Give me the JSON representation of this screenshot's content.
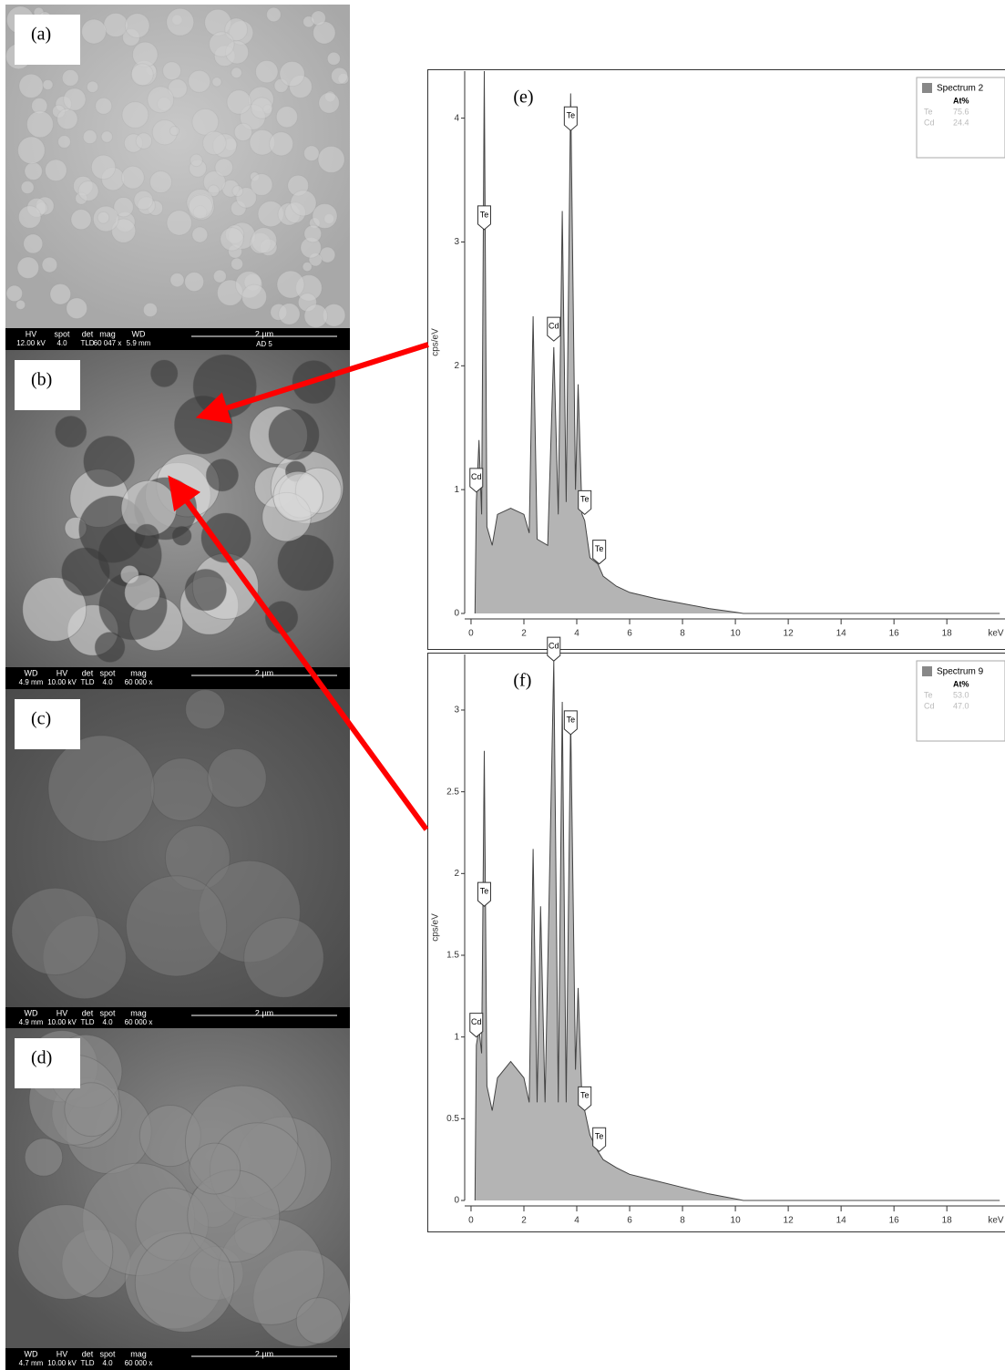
{
  "panels": [
    {
      "label": "(a)",
      "info_headers": [
        "HV",
        "spot",
        "det",
        "mag",
        "WD"
      ],
      "info_values": [
        "12.00 kV",
        "4.0",
        "TLD",
        "60 047 x",
        "5.9 mm"
      ],
      "scale": "2 µm",
      "note": "AD 5"
    },
    {
      "label": "(b)",
      "info_headers": [
        "WD",
        "HV",
        "det",
        "spot",
        "mag"
      ],
      "info_values": [
        "4.9 mm",
        "10.00 kV",
        "TLD",
        "4.0",
        "60 000 x"
      ],
      "scale": "2 µm"
    },
    {
      "label": "(c)",
      "info_headers": [
        "WD",
        "HV",
        "det",
        "spot",
        "mag"
      ],
      "info_values": [
        "4.9 mm",
        "10.00 kV",
        "TLD",
        "4.0",
        "60 000 x"
      ],
      "scale": "2 µm"
    },
    {
      "label": "(d)",
      "info_headers": [
        "WD",
        "HV",
        "det",
        "spot",
        "mag"
      ],
      "info_values": [
        "4.7 mm",
        "10.00 kV",
        "TLD",
        "4.0",
        "60 000 x"
      ],
      "scale": "2 µm"
    }
  ],
  "chart_data": [
    {
      "type": "area",
      "title": "(e)",
      "y_label": "cps/eV",
      "x_label": "keV",
      "color": "#b4b4b4",
      "x": [
        0.15,
        0.2,
        0.3,
        0.4,
        0.5,
        0.6,
        0.8,
        1.0,
        1.5,
        2.0,
        2.2,
        2.35,
        2.5,
        2.9,
        3.13,
        3.3,
        3.45,
        3.6,
        3.77,
        3.95,
        4.05,
        4.2,
        4.3,
        4.5,
        4.8,
        5.0,
        5.5,
        6,
        7,
        8,
        9,
        10,
        10.3,
        20
      ],
      "values": [
        0,
        0.9,
        1.4,
        0.8,
        4.38,
        0.7,
        0.55,
        0.8,
        0.85,
        0.8,
        0.65,
        2.4,
        0.6,
        0.55,
        2.15,
        0.8,
        3.25,
        0.9,
        4.2,
        1.0,
        1.85,
        0.8,
        0.75,
        0.45,
        0.4,
        0.3,
        0.22,
        0.17,
        0.12,
        0.08,
        0.04,
        0.01,
        0,
        0
      ],
      "xlim": [
        -0.24,
        20.2
      ],
      "xticks": [
        0,
        2,
        4,
        6,
        8,
        10,
        12,
        14,
        16,
        18
      ],
      "ylim": [
        0,
        4.38
      ],
      "yticks": [
        0,
        1,
        2,
        3,
        4
      ],
      "annotations": [
        {
          "text": "Cd",
          "x": 0.2,
          "y": 0.98
        },
        {
          "text": "Te",
          "x": 0.5,
          "y": 3.1
        },
        {
          "text": "Cd",
          "x": 3.13,
          "y": 2.2
        },
        {
          "text": "Te",
          "x": 3.77,
          "y": 3.9
        },
        {
          "text": "Te",
          "x": 4.3,
          "y": 0.8
        },
        {
          "text": "Te",
          "x": 4.85,
          "y": 0.4
        }
      ],
      "legend": {
        "title": "Spectrum 2",
        "header": "At%",
        "rows": [
          [
            "Te",
            "75.6"
          ],
          [
            "Cd",
            "24.4"
          ]
        ]
      }
    },
    {
      "type": "area",
      "title": "(f)",
      "y_label": "cps/eV",
      "x_label": "keV",
      "color": "#b4b4b4",
      "x": [
        0.15,
        0.2,
        0.3,
        0.4,
        0.5,
        0.6,
        0.8,
        1.0,
        1.5,
        2.0,
        2.2,
        2.35,
        2.5,
        2.63,
        2.8,
        3.13,
        3.3,
        3.45,
        3.6,
        3.77,
        3.95,
        4.05,
        4.2,
        4.3,
        4.5,
        4.8,
        5.0,
        5.5,
        6,
        7,
        8,
        9,
        10,
        10.3,
        20
      ],
      "values": [
        0,
        0.95,
        1.05,
        0.9,
        2.75,
        0.7,
        0.55,
        0.75,
        0.85,
        0.75,
        0.6,
        2.15,
        0.6,
        1.8,
        0.6,
        3.3,
        0.6,
        3.05,
        0.6,
        2.95,
        0.8,
        1.3,
        0.6,
        0.55,
        0.4,
        0.3,
        0.25,
        0.2,
        0.16,
        0.12,
        0.08,
        0.04,
        0.01,
        0,
        0
      ],
      "xlim": [
        -0.24,
        20.2
      ],
      "xticks": [
        0,
        2,
        4,
        6,
        8,
        10,
        12,
        14,
        16,
        18
      ],
      "ylim": [
        0,
        3.34
      ],
      "yticks": [
        0,
        0.5,
        1,
        1.5,
        2,
        2.5,
        3
      ],
      "annotations": [
        {
          "text": "Cd",
          "x": 0.2,
          "y": 1.0
        },
        {
          "text": "Te",
          "x": 0.5,
          "y": 1.8
        },
        {
          "text": "Cd",
          "x": 3.13,
          "y": 3.3
        },
        {
          "text": "Te",
          "x": 3.77,
          "y": 2.85
        },
        {
          "text": "Te",
          "x": 4.3,
          "y": 0.55
        },
        {
          "text": "Te",
          "x": 4.85,
          "y": 0.3
        }
      ],
      "legend": {
        "title": "Spectrum 9",
        "header": "At%",
        "rows": [
          [
            "Te",
            "53.0"
          ],
          [
            "Cd",
            "47.0"
          ]
        ]
      }
    }
  ]
}
